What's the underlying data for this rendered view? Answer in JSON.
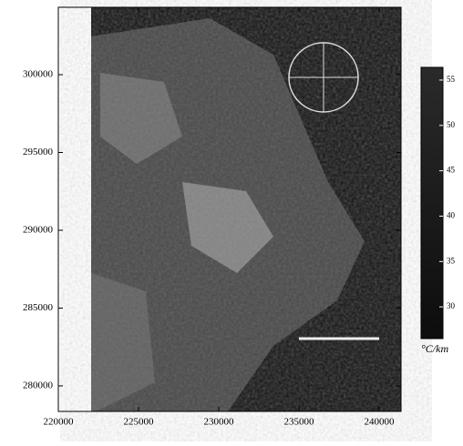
{
  "chart_data": {
    "type": "map",
    "xlim": [
      220000,
      241360
    ],
    "xticks": [
      220000,
      225000,
      230000,
      235000,
      240000
    ],
    "ylim": [
      278360,
      304330
    ],
    "yticks": [
      280000,
      285000,
      290000,
      295000,
      300000
    ],
    "colorbar": {
      "label": "°C/km",
      "lim": [
        26.5,
        56.4
      ],
      "ticks": [
        30,
        35,
        40,
        45,
        50,
        55
      ]
    }
  }
}
